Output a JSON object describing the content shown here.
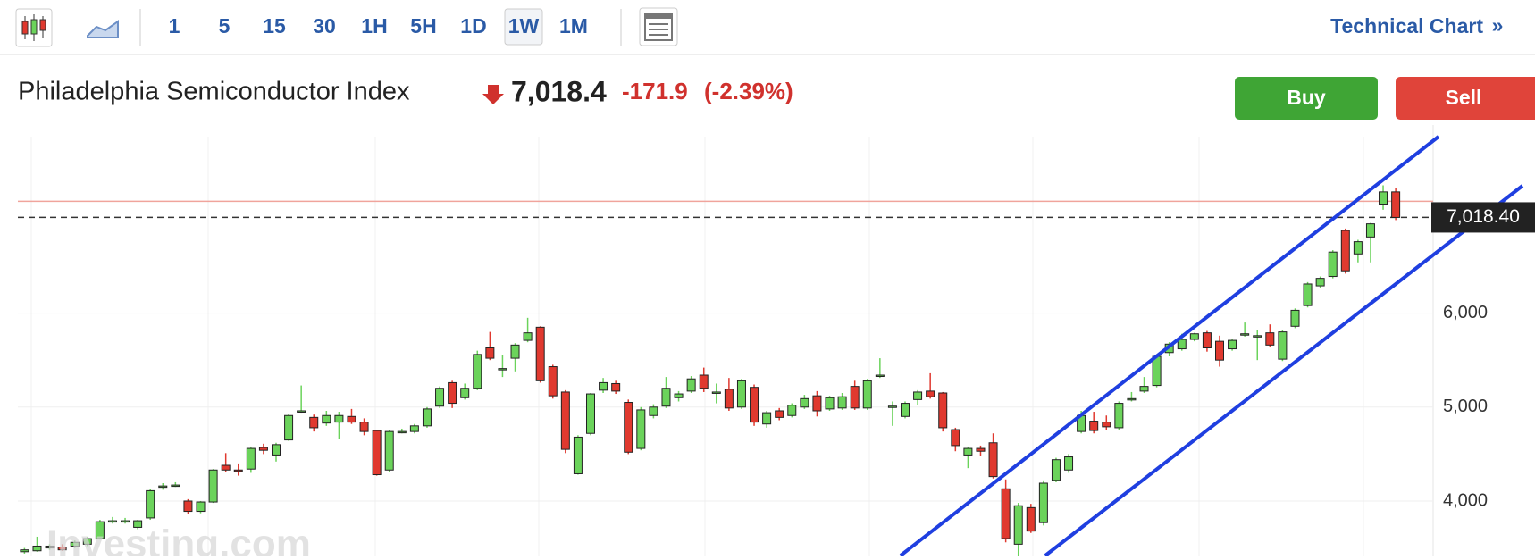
{
  "toolbar": {
    "intervals": [
      "1",
      "5",
      "15",
      "30",
      "1H",
      "5H",
      "1D",
      "1W",
      "1M"
    ],
    "active_index": 7,
    "technical_chart": "Technical Chart",
    "chevron": "»"
  },
  "header": {
    "title": "Philadelphia Semiconductor Index",
    "price": "7,018.4",
    "change": "-171.9",
    "change_pct": "(-2.39%)"
  },
  "buttons": {
    "buy": "Buy",
    "sell": "Sell"
  },
  "watermark": "Investing.com",
  "chart_data": {
    "type": "candlestick",
    "ylim": [
      3420,
      7878
    ],
    "yticks": [
      {
        "value": 4000,
        "label": "4,000"
      },
      {
        "value": 5000,
        "label": "5,000"
      },
      {
        "value": 6000,
        "label": "6,000"
      }
    ],
    "grid": true,
    "up_color": "#6bd35b",
    "down_color": "#e0392f",
    "prev_close_line": 7190.3,
    "last_price": {
      "value": 7018.4,
      "label": "7,018.40"
    },
    "ohlc": [
      [
        3460,
        3500,
        3440,
        3480
      ],
      [
        3470,
        3620,
        3460,
        3520
      ],
      [
        3500,
        3540,
        3480,
        3520
      ],
      [
        3510,
        3540,
        3470,
        3480
      ],
      [
        3520,
        3580,
        3500,
        3560
      ],
      [
        3540,
        3620,
        3520,
        3600
      ],
      [
        3600,
        3800,
        3590,
        3780
      ],
      [
        3780,
        3830,
        3760,
        3790
      ],
      [
        3790,
        3820,
        3760,
        3790
      ],
      [
        3720,
        3800,
        3700,
        3790
      ],
      [
        3820,
        4130,
        3800,
        4110
      ],
      [
        4150,
        4190,
        4120,
        4160
      ],
      [
        4170,
        4200,
        4150,
        4170
      ],
      [
        4000,
        4020,
        3860,
        3890
      ],
      [
        3890,
        4000,
        3870,
        3990
      ],
      [
        3990,
        4340,
        3980,
        4330
      ],
      [
        4380,
        4510,
        4310,
        4330
      ],
      [
        4330,
        4400,
        4270,
        4320
      ],
      [
        4340,
        4580,
        4300,
        4560
      ],
      [
        4570,
        4610,
        4500,
        4540
      ],
      [
        4490,
        4620,
        4420,
        4600
      ],
      [
        4650,
        4930,
        4640,
        4910
      ],
      [
        4960,
        5230,
        4940,
        4960
      ],
      [
        4890,
        4920,
        4740,
        4780
      ],
      [
        4830,
        4960,
        4800,
        4910
      ],
      [
        4840,
        4950,
        4660,
        4910
      ],
      [
        4900,
        4980,
        4820,
        4840
      ],
      [
        4840,
        4880,
        4700,
        4740
      ],
      [
        4750,
        4760,
        4270,
        4280
      ],
      [
        4330,
        4760,
        4310,
        4740
      ],
      [
        4740,
        4770,
        4720,
        4740
      ],
      [
        4740,
        4820,
        4720,
        4800
      ],
      [
        4800,
        5000,
        4780,
        4980
      ],
      [
        5010,
        5220,
        4990,
        5200
      ],
      [
        5260,
        5280,
        4990,
        5040
      ],
      [
        5100,
        5250,
        5080,
        5200
      ],
      [
        5200,
        5600,
        5180,
        5560
      ],
      [
        5630,
        5800,
        5500,
        5520
      ],
      [
        5410,
        5550,
        5320,
        5410
      ],
      [
        5520,
        5680,
        5380,
        5660
      ],
      [
        5710,
        5950,
        5690,
        5790
      ],
      [
        5850,
        5860,
        5260,
        5280
      ],
      [
        5430,
        5450,
        5090,
        5120
      ],
      [
        5160,
        5180,
        4510,
        4550
      ],
      [
        4290,
        4700,
        4280,
        4680
      ],
      [
        4720,
        5150,
        4700,
        5140
      ],
      [
        5180,
        5310,
        5150,
        5260
      ],
      [
        5250,
        5280,
        5140,
        5170
      ],
      [
        5050,
        5080,
        4500,
        4520
      ],
      [
        4560,
        5000,
        4540,
        4970
      ],
      [
        4910,
        5030,
        4880,
        5000
      ],
      [
        5010,
        5320,
        4990,
        5200
      ],
      [
        5100,
        5170,
        5060,
        5140
      ],
      [
        5170,
        5330,
        5150,
        5300
      ],
      [
        5340,
        5420,
        5160,
        5200
      ],
      [
        5160,
        5250,
        5040,
        5160
      ],
      [
        5190,
        5310,
        4960,
        4990
      ],
      [
        5000,
        5300,
        4980,
        5280
      ],
      [
        5210,
        5240,
        4800,
        4840
      ],
      [
        4820,
        4960,
        4780,
        4940
      ],
      [
        4960,
        4990,
        4860,
        4890
      ],
      [
        4910,
        5040,
        4890,
        5020
      ],
      [
        5000,
        5130,
        4980,
        5090
      ],
      [
        5120,
        5170,
        4900,
        4960
      ],
      [
        4980,
        5120,
        4960,
        5100
      ],
      [
        4990,
        5150,
        4970,
        5110
      ],
      [
        5220,
        5280,
        4970,
        4990
      ],
      [
        4990,
        5300,
        4970,
        5280
      ],
      [
        5340,
        5520,
        5310,
        5340
      ],
      [
        5010,
        5060,
        4800,
        5010
      ],
      [
        4900,
        5060,
        4880,
        5040
      ],
      [
        5080,
        5180,
        5020,
        5160
      ],
      [
        5170,
        5360,
        5090,
        5110
      ],
      [
        5150,
        5160,
        4740,
        4780
      ],
      [
        4760,
        4780,
        4530,
        4590
      ],
      [
        4490,
        4580,
        4350,
        4560
      ],
      [
        4560,
        4590,
        4480,
        4530
      ],
      [
        4620,
        4720,
        4240,
        4260
      ],
      [
        4130,
        4230,
        3560,
        3600
      ],
      [
        3540,
        3980,
        3420,
        3950
      ],
      [
        3930,
        3970,
        3660,
        3680
      ],
      [
        3770,
        4220,
        3740,
        4190
      ],
      [
        4220,
        4460,
        4200,
        4440
      ],
      [
        4330,
        4500,
        4300,
        4470
      ],
      [
        4740,
        4960,
        4720,
        4910
      ],
      [
        4850,
        4950,
        4720,
        4750
      ],
      [
        4840,
        4910,
        4760,
        4790
      ],
      [
        4780,
        5060,
        4760,
        5040
      ],
      [
        5090,
        5160,
        5060,
        5090
      ],
      [
        5170,
        5320,
        5150,
        5220
      ],
      [
        5230,
        5560,
        5210,
        5540
      ],
      [
        5580,
        5690,
        5540,
        5670
      ],
      [
        5620,
        5780,
        5600,
        5720
      ],
      [
        5720,
        5790,
        5700,
        5780
      ],
      [
        5790,
        5810,
        5590,
        5630
      ],
      [
        5700,
        5760,
        5430,
        5500
      ],
      [
        5620,
        5730,
        5600,
        5710
      ],
      [
        5780,
        5900,
        5750,
        5780
      ],
      [
        5760,
        5820,
        5500,
        5760
      ],
      [
        5790,
        5880,
        5640,
        5660
      ],
      [
        5510,
        5820,
        5490,
        5800
      ],
      [
        5860,
        6050,
        5840,
        6030
      ],
      [
        6080,
        6330,
        6060,
        6310
      ],
      [
        6290,
        6390,
        6270,
        6370
      ],
      [
        6390,
        6670,
        6370,
        6650
      ],
      [
        6880,
        6900,
        6420,
        6450
      ],
      [
        6630,
        6780,
        6540,
        6760
      ],
      [
        6810,
        6960,
        6540,
        6950
      ],
      [
        7160,
        7360,
        7100,
        7290
      ],
      [
        7290,
        7330,
        6990,
        7018.4
      ]
    ]
  }
}
